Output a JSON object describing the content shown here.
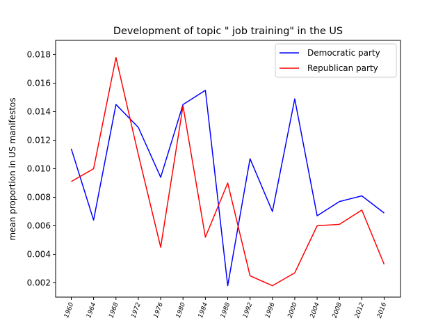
{
  "chart_data": {
    "type": "line",
    "title": "Development of topic \" job training\" in the US",
    "xlabel": "",
    "ylabel": "mean proportion in US manifestos",
    "x": [
      "1960",
      "1964",
      "1968",
      "1972",
      "1976",
      "1980",
      "1984",
      "1988",
      "1992",
      "1996",
      "2000",
      "2004",
      "2008",
      "2012",
      "2016"
    ],
    "ylim": [
      0.001,
      0.019
    ],
    "yticks": [
      "0.002",
      "0.004",
      "0.006",
      "0.008",
      "0.010",
      "0.012",
      "0.014",
      "0.016",
      "0.018"
    ],
    "grid": false,
    "legend_position": "top-right",
    "series": [
      {
        "name": "Democratic party",
        "color": "#0000ff",
        "values": [
          0.0114,
          0.0064,
          0.0145,
          0.0129,
          0.0094,
          0.0145,
          0.0155,
          0.0018,
          0.0107,
          0.007,
          0.0149,
          0.0067,
          0.0077,
          0.0081,
          0.0069
        ]
      },
      {
        "name": "Republican party",
        "color": "#ff0000",
        "values": [
          0.0091,
          0.01,
          0.0178,
          0.011,
          0.0045,
          0.0144,
          0.0052,
          0.009,
          0.0025,
          0.0018,
          0.0027,
          0.006,
          0.0061,
          0.0071,
          0.0033
        ]
      }
    ]
  }
}
